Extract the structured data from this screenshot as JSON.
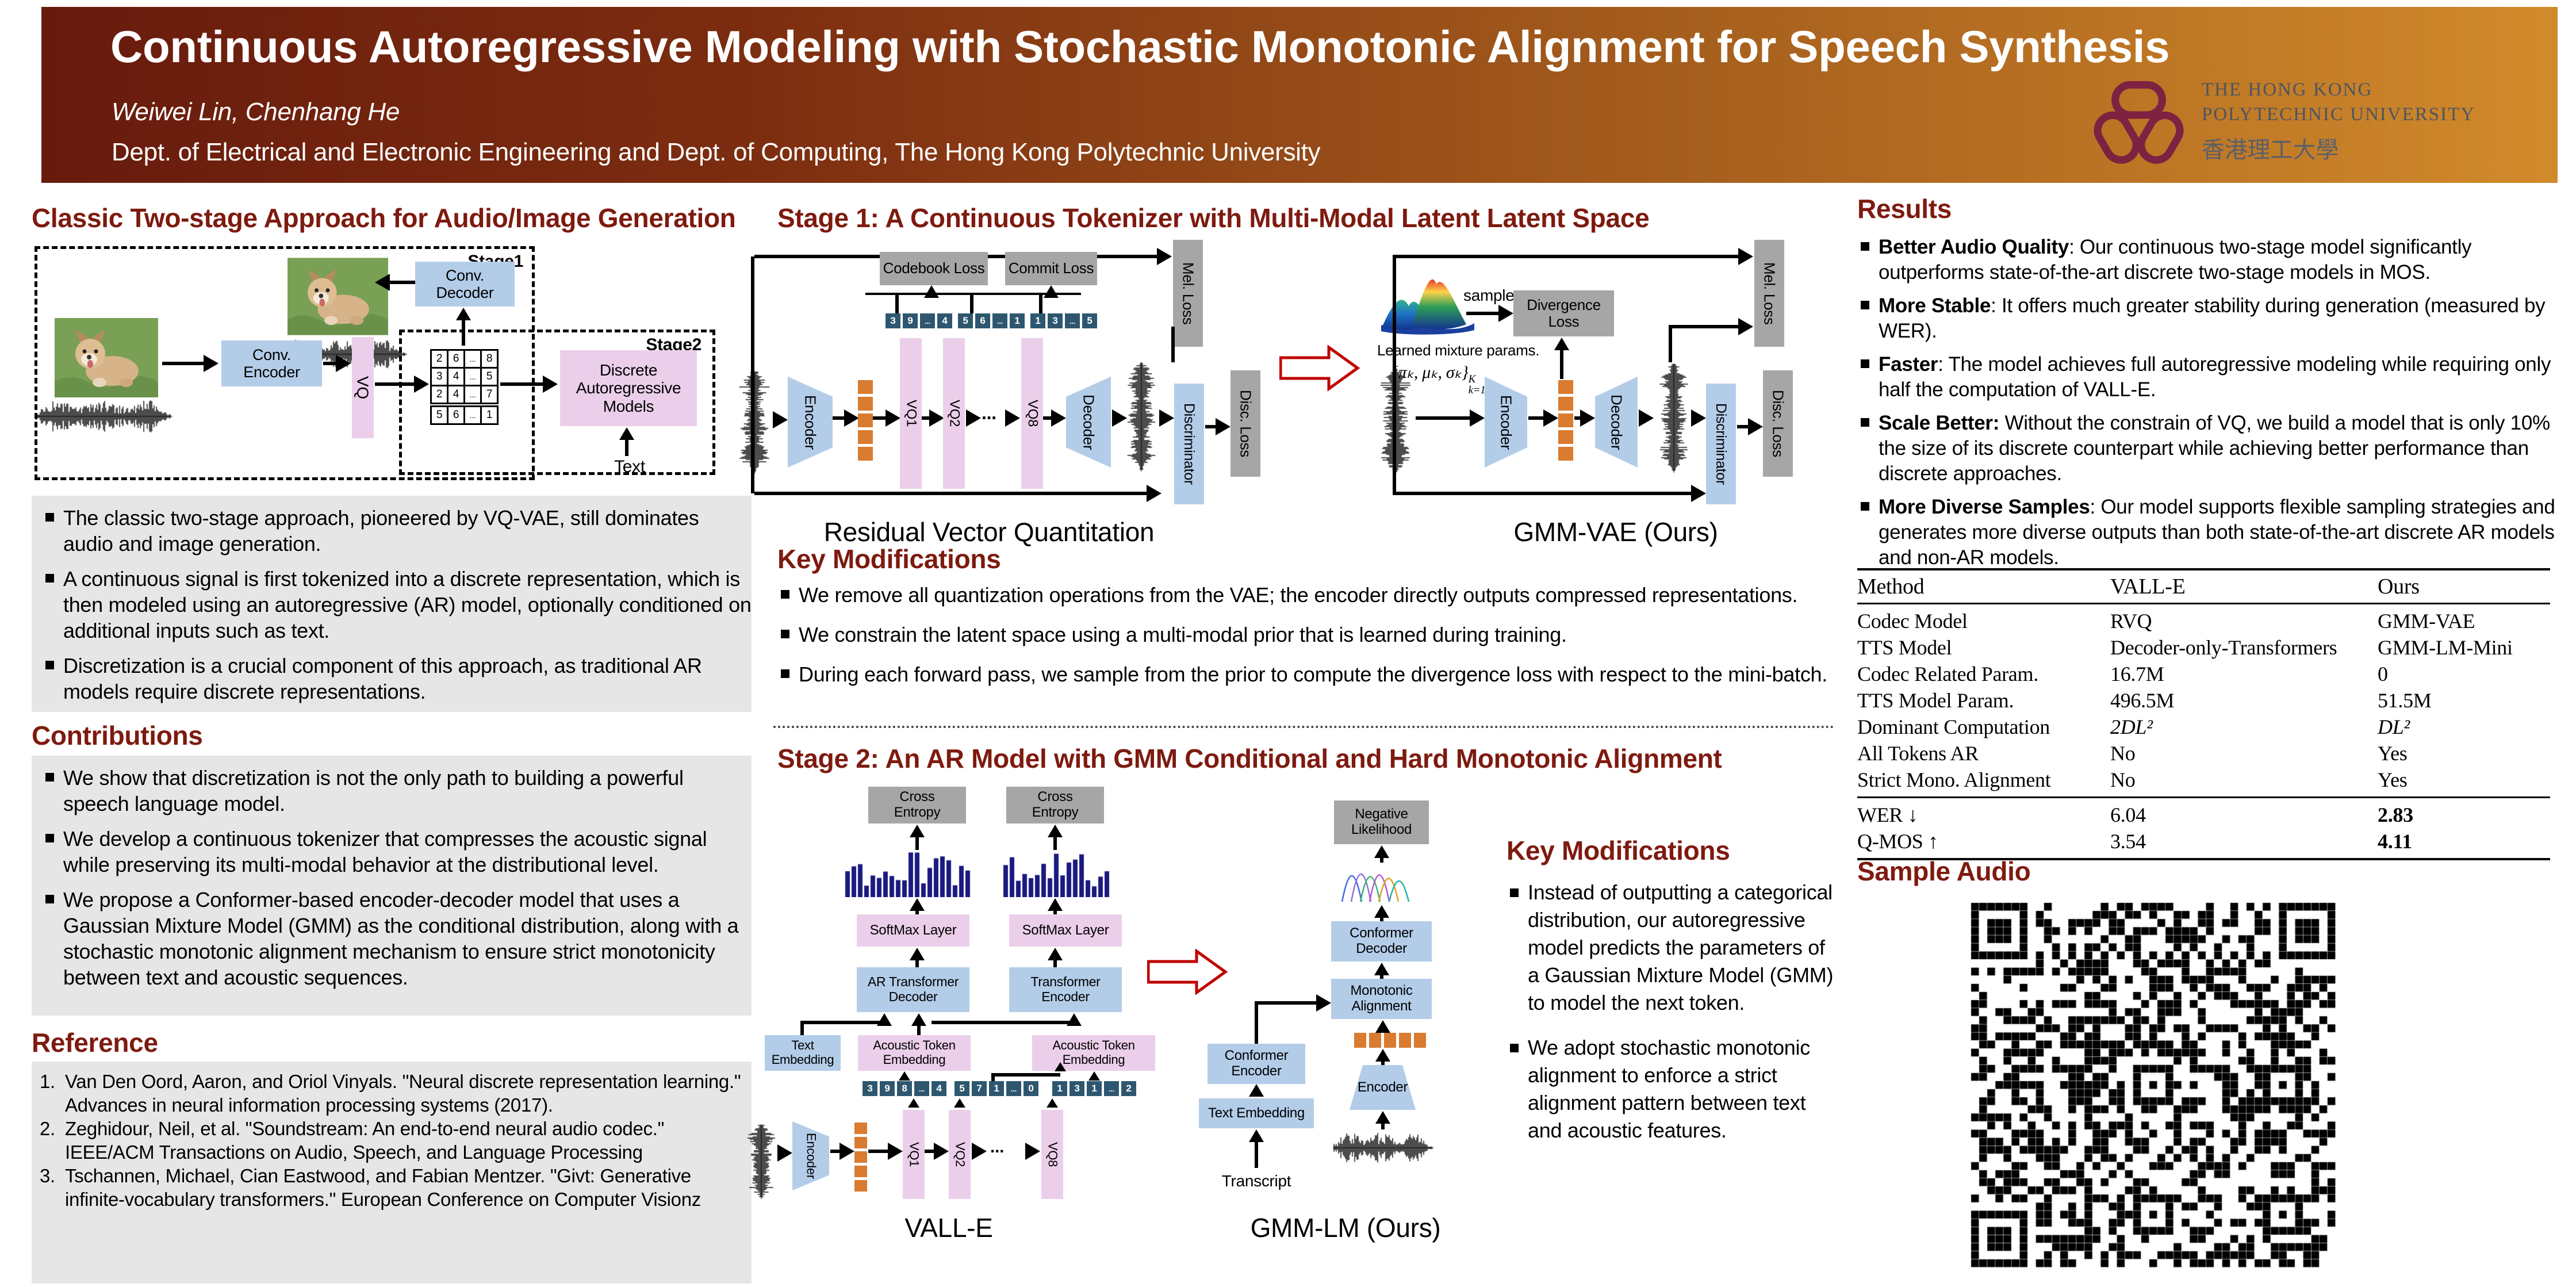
{
  "header": {
    "title": "Continuous Autoregressive Modeling with Stochastic Monotonic Alignment for Speech Synthesis",
    "authors": "Weiwei Lin, Chenhang He",
    "affiliation": "Dept. of Electrical and Electronic Engineering and Dept. of Computing, The Hong Kong Polytechnic University",
    "logo": {
      "line1": "THE HONG KONG",
      "line2": "POLYTECHNIC UNIVERSITY",
      "line3": "香港理工大學"
    }
  },
  "left": {
    "approach": {
      "heading": "Classic Two-stage Approach for Audio/Image Generation",
      "diagram": {
        "stage1_label": "Stage1",
        "stage2_label": "Stage2",
        "conv_decoder": "Conv. Decoder",
        "conv_encoder": "Conv. Encoder",
        "vq_label": "VQ",
        "grid": [
          [
            "2",
            "6",
            "...",
            "8"
          ],
          [
            "3",
            "4",
            "...",
            "5"
          ],
          [
            "2",
            "4",
            "...",
            "7"
          ]
        ],
        "grid_extra": [
          "5",
          "6",
          "...",
          "1"
        ],
        "discrete_ar_model": "Discrete Autoregressive Models",
        "text_label": "Text"
      },
      "bullets": [
        "The classic two-stage approach, pioneered by VQ-VAE, still dominates audio and image generation.",
        "A continuous signal is first tokenized into a discrete representation, which is then modeled using an autoregressive (AR) model, optionally conditioned on additional inputs such as text.",
        "Discretization is a crucial component of this approach, as traditional AR models require discrete representations."
      ]
    },
    "contributions": {
      "heading": "Contributions",
      "bullets": [
        "We show that discretization is not the only path to building a powerful speech language model.",
        "We develop a continuous tokenizer that compresses the acoustic signal while preserving its multi-modal behavior at the distributional level.",
        "We propose a Conformer-based encoder-decoder model that uses a Gaussian Mixture Model (GMM) as the conditional distribution, along with a stochastic monotonic alignment mechanism to ensure strict monotonicity between text and acoustic sequences."
      ]
    },
    "reference": {
      "heading": "Reference",
      "items": [
        {
          "num": "1.",
          "text": "Van Den Oord, Aaron, and Oriol Vinyals. \"Neural discrete representation learning.\" Advances in neural information processing systems (2017)."
        },
        {
          "num": "2.",
          "text": "Zeghidour, Neil, et al. \"Soundstream: An end-to-end neural audio codec.\" IEEE/ACM Transactions on Audio, Speech, and Language Processing"
        },
        {
          "num": "3.",
          "text": "Tschannen, Michael, Cian Eastwood, and Fabian Mentzer. \"Givt: Generative infinite-vocabulary transformers.\" European Conference on Computer Visionz"
        }
      ]
    }
  },
  "middle": {
    "stage1": {
      "heading": "Stage 1: A Continuous Tokenizer with Multi-Modal Latent Latent Space",
      "rvq": {
        "caption": "Residual Vector Quantitation",
        "codebook_loss": "Codebook Loss",
        "commit_loss": "Commit Loss",
        "mel_loss": "Mel. Loss",
        "disc_loss": "Disc. Loss",
        "encoder": "Encoder",
        "decoder": "Decoder",
        "discriminator": "Discriminator",
        "dots": "...",
        "vq_bars": [
          "VQ1",
          "VQ2",
          "VQ8"
        ],
        "token_rows": [
          [
            "3",
            "9",
            "...",
            "4"
          ],
          [
            "5",
            "6",
            "...",
            "1"
          ],
          [
            "1",
            "3",
            "...",
            "5"
          ]
        ]
      },
      "gmm_vae": {
        "caption": "GMM-VAE (Ours)",
        "sample_label": "sample",
        "divergence_loss": "Divergence Loss",
        "learned_params": "Learned mixture params.",
        "formula_base": "{πₖ, μₖ, σₖ}",
        "formula_sup": "K",
        "formula_sub": "k=1",
        "mel_loss": "Mel. Loss",
        "disc_loss": "Disc. Loss",
        "encoder": "Encoder",
        "decoder": "Decoder",
        "discriminator": "Discriminator"
      }
    },
    "key_mod1": {
      "heading": "Key Modifications",
      "bullets": [
        "We remove all quantization operations from the VAE; the encoder directly outputs compressed representations.",
        "We constrain the latent space using a multi-modal prior that is learned during training.",
        "During each forward pass, we sample from the prior to compute the divergence loss with respect to the mini-batch."
      ]
    },
    "stage2": {
      "heading": "Stage 2: An AR Model with GMM Conditional and Hard Monotonic Alignment",
      "valle": {
        "caption": "VALL-E",
        "cross_entropy": "Cross Entropy",
        "softmax": "SoftMax Layer",
        "ar_decoder": "AR Transformer Decoder",
        "encoder_block": "Transformer Encoder",
        "text_embedding": "Text Embedding",
        "acoustic_embedding": "Acoustic Token Embedding",
        "dots": "...",
        "chips": [
          [
            "3",
            "9",
            "8",
            "...",
            "4"
          ],
          [
            "5",
            "7",
            "1",
            "...",
            "0"
          ],
          [
            "1",
            "3",
            "1",
            "...",
            "2"
          ]
        ],
        "vq_bars": [
          "VQ1",
          "VQ2",
          "VQ8"
        ],
        "encoder": "Encoder"
      },
      "gmm_lm": {
        "caption": "GMM-LM (Ours)",
        "negative_likelihood": "Negative Likelihood",
        "conformer_decoder": "Conformer Decoder",
        "monotonic_alignment": "Monotonic Alignment",
        "conformer_encoder": "Conformer Encoder",
        "text_embedding": "Text Embedding",
        "transcript": "Transcript",
        "encoder": "Encoder"
      }
    },
    "key_mod2": {
      "heading": "Key Modifications",
      "bullets": [
        "Instead of outputting a categorical distribution, our autoregressive model predicts the parameters of a Gaussian Mixture Model (GMM) to model the next token.",
        "We adopt stochastic monotonic alignment to enforce a strict alignment pattern between text and acoustic features."
      ]
    }
  },
  "right": {
    "results": {
      "heading": "Results",
      "bullets": [
        {
          "lead": "Better Audio Quality",
          "text": ": Our continuous two-stage model significantly outperforms state-of-the-art discrete two-stage models in MOS."
        },
        {
          "lead": "More Stable",
          "text": ": It offers much greater stability during generation (measured by WER)."
        },
        {
          "lead": "Faster",
          "text": ": The model achieves full autoregressive modeling while requiring only half the computation of VALL-E."
        },
        {
          "lead": "Scale Better:",
          "text": " Without the constrain of VQ, we build a model that is only 10% the size of its discrete counterpart while achieving better performance than discrete approaches."
        },
        {
          "lead": "More Diverse Samples",
          "text": ": Our model supports flexible sampling strategies and generates more diverse outputs than both state-of-the-art discrete AR models and non-AR models."
        }
      ]
    },
    "table": {
      "headers": [
        "Method",
        "VALL-E",
        "Ours"
      ],
      "rows": [
        [
          "Codec Model",
          "RVQ",
          "GMM-VAE"
        ],
        [
          "TTS Model",
          "Decoder-only-Transformers",
          "GMM-LM-Mini"
        ],
        [
          "Codec Related Param.",
          "16.7M",
          "0"
        ],
        [
          "TTS Model Param.",
          "496.5M",
          "51.5M"
        ],
        [
          "Dominant Computation",
          "2DL²",
          "DL²"
        ],
        [
          "All Tokens AR",
          "No",
          "Yes"
        ],
        [
          "Strict Mono. Alignment",
          "No",
          "Yes"
        ]
      ],
      "metrics": [
        [
          "WER ↓",
          "6.04",
          "2.83"
        ],
        [
          "Q-MOS ↑",
          "3.54",
          "4.11"
        ]
      ]
    },
    "sample_audio": {
      "heading": "Sample Audio"
    }
  }
}
